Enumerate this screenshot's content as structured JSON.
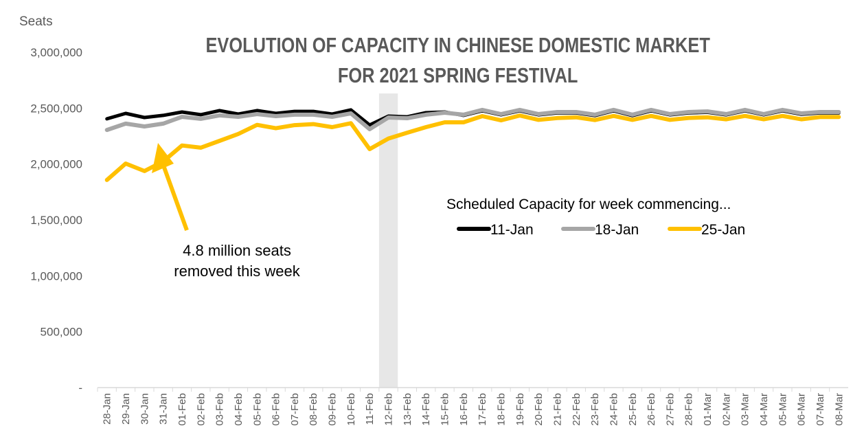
{
  "chart_data": {
    "type": "line",
    "title": [
      "EVOLUTION OF CAPACITY IN CHINESE DOMESTIC MARKET",
      "FOR 2021 SPRING FESTIVAL"
    ],
    "ylabel": "Seats",
    "xlabel": "",
    "ylim": [
      0,
      3000000
    ],
    "yticks": [
      0,
      500000,
      1000000,
      1500000,
      2000000,
      2500000,
      3000000
    ],
    "ytick_labels": [
      "-",
      "500,000",
      "1,000,000",
      "1,500,000",
      "2,000,000",
      "2,500,000",
      "3,000,000"
    ],
    "grid": false,
    "highlighted_category": "12-Feb",
    "categories": [
      "28-Jan",
      "29-Jan",
      "30-Jan",
      "31-Jan",
      "01-Feb",
      "02-Feb",
      "03-Feb",
      "04-Feb",
      "05-Feb",
      "06-Feb",
      "07-Feb",
      "08-Feb",
      "09-Feb",
      "10-Feb",
      "11-Feb",
      "12-Feb",
      "13-Feb",
      "14-Feb",
      "15-Feb",
      "16-Feb",
      "17-Feb",
      "18-Feb",
      "19-Feb",
      "20-Feb",
      "21-Feb",
      "22-Feb",
      "23-Feb",
      "24-Feb",
      "25-Feb",
      "26-Feb",
      "27-Feb",
      "28-Feb",
      "01-Mar",
      "02-Mar",
      "03-Mar",
      "04-Mar",
      "05-Mar",
      "06-Mar",
      "07-Mar",
      "08-Mar"
    ],
    "legend_title": "Scheduled Capacity for week commencing...",
    "legend_position": "center-right",
    "series": [
      {
        "name": "11-Jan",
        "color": "#000000",
        "values": [
          2404000,
          2453000,
          2416000,
          2435000,
          2465000,
          2441000,
          2478000,
          2447000,
          2478000,
          2453000,
          2471000,
          2471000,
          2447000,
          2484000,
          2349000,
          2428000,
          2422000,
          2459000,
          2465000,
          2435000,
          2476000,
          2440000,
          2476000,
          2440000,
          2457000,
          2457000,
          2433000,
          2476000,
          2433000,
          2476000,
          2440000,
          2457000,
          2463000,
          2440000,
          2476000,
          2440000,
          2476000,
          2445000,
          2457000,
          2457000
        ]
      },
      {
        "name": "18-Jan",
        "color": "#A6A6A6",
        "values": [
          2305000,
          2361000,
          2336000,
          2361000,
          2422000,
          2404000,
          2435000,
          2422000,
          2447000,
          2428000,
          2441000,
          2441000,
          2422000,
          2453000,
          2312000,
          2416000,
          2410000,
          2441000,
          2459000,
          2441000,
          2484000,
          2447000,
          2484000,
          2447000,
          2465000,
          2465000,
          2441000,
          2484000,
          2441000,
          2484000,
          2447000,
          2465000,
          2471000,
          2447000,
          2484000,
          2447000,
          2484000,
          2453000,
          2465000,
          2465000
        ]
      },
      {
        "name": "25-Jan",
        "color": "#FFC000",
        "values": [
          1857000,
          2004000,
          1937000,
          2023000,
          2166000,
          2146000,
          2207000,
          2269000,
          2350000,
          2320000,
          2348000,
          2357000,
          2330000,
          2365000,
          2133000,
          2228000,
          2280000,
          2330000,
          2373000,
          2373000,
          2428000,
          2391000,
          2434000,
          2395000,
          2411000,
          2418000,
          2393000,
          2430000,
          2395000,
          2430000,
          2395000,
          2412000,
          2418000,
          2400000,
          2430000,
          2400000,
          2430000,
          2400000,
          2420000,
          2420000
        ]
      }
    ],
    "annotation": {
      "text": [
        "4.8 million seats",
        "removed this week"
      ],
      "points_to": "31-Jan"
    }
  }
}
